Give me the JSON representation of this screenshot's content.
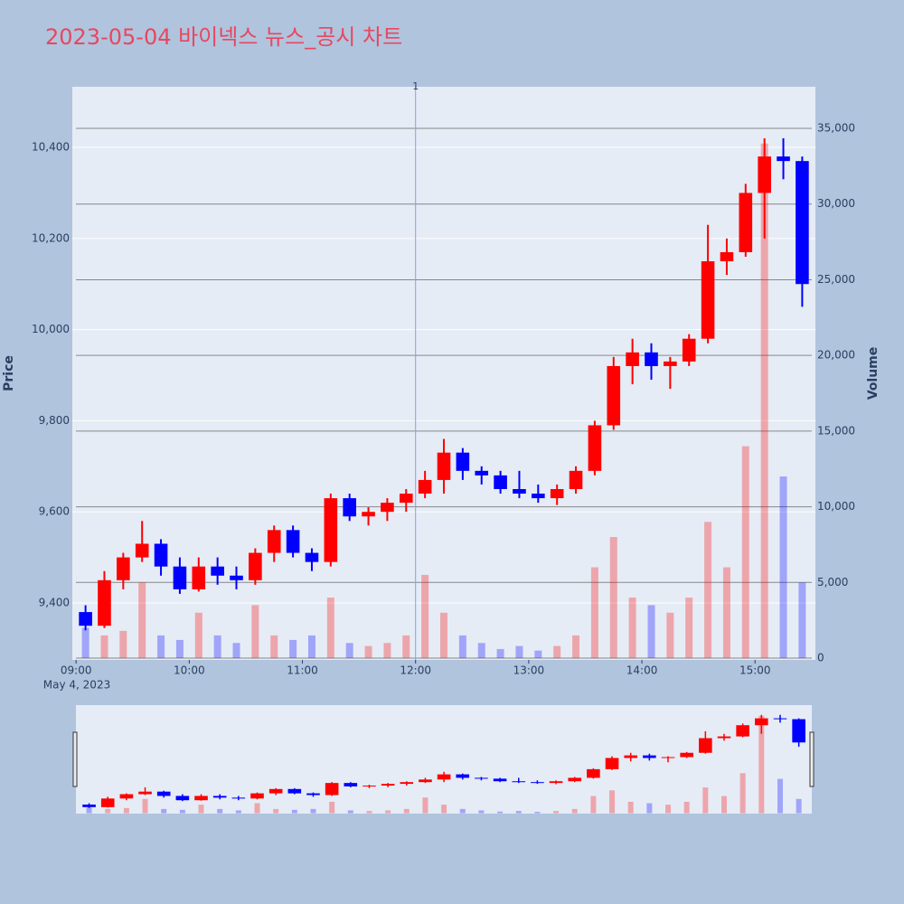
{
  "chart_data": {
    "type": "candlestick",
    "title": "2023-05-04 바이넥스 뉴스_공시 차트",
    "y_label": "Price",
    "y2_label": "Volume",
    "x_date_label": "May 4, 2023",
    "increasing_color": "#ff0000",
    "decreasing_color": "#0000ff",
    "x": [
      "2023-05-04 09:00",
      "2023-05-04 09:10",
      "2023-05-04 09:20",
      "2023-05-04 09:30",
      "2023-05-04 09:40",
      "2023-05-04 09:50",
      "2023-05-04 10:00",
      "2023-05-04 10:10",
      "2023-05-04 10:20",
      "2023-05-04 10:30",
      "2023-05-04 10:40",
      "2023-05-04 10:50",
      "2023-05-04 11:00",
      "2023-05-04 11:10",
      "2023-05-04 11:20",
      "2023-05-04 11:30",
      "2023-05-04 11:40",
      "2023-05-04 11:50",
      "2023-05-04 12:00",
      "2023-05-04 12:10",
      "2023-05-04 12:20",
      "2023-05-04 12:30",
      "2023-05-04 12:40",
      "2023-05-04 12:50",
      "2023-05-04 13:00",
      "2023-05-04 13:10",
      "2023-05-04 13:20",
      "2023-05-04 13:30",
      "2023-05-04 13:40",
      "2023-05-04 13:50",
      "2023-05-04 14:00",
      "2023-05-04 14:10",
      "2023-05-04 14:20",
      "2023-05-04 14:30",
      "2023-05-04 14:40",
      "2023-05-04 14:50",
      "2023-05-04 15:00",
      "2023-05-04 15:10",
      "2023-05-04 15:20"
    ],
    "open": [
      9380,
      9350,
      9450,
      9500,
      9530,
      9480,
      9430,
      9480,
      9460,
      9450,
      9510,
      9560,
      9510,
      9490,
      9630,
      9590,
      9600,
      9620,
      9640,
      9670,
      9730,
      9690,
      9680,
      9650,
      9640,
      9630,
      9650,
      9690,
      9790,
      9920,
      9950,
      9920,
      9930,
      9980,
      10150,
      10170,
      10300,
      10380,
      10370
    ],
    "high": [
      9395,
      9470,
      9510,
      9580,
      9540,
      9500,
      9500,
      9500,
      9480,
      9520,
      9570,
      9570,
      9520,
      9640,
      9640,
      9610,
      9630,
      9650,
      9690,
      9760,
      9740,
      9700,
      9690,
      9690,
      9660,
      9660,
      9700,
      9800,
      9940,
      9980,
      9970,
      9940,
      9990,
      10230,
      10200,
      10320,
      10420,
      10420,
      10380
    ],
    "low": [
      9340,
      9345,
      9430,
      9490,
      9460,
      9420,
      9425,
      9440,
      9430,
      9440,
      9490,
      9500,
      9470,
      9480,
      9580,
      9570,
      9580,
      9600,
      9630,
      9640,
      9670,
      9660,
      9640,
      9630,
      9620,
      9615,
      9640,
      9680,
      9780,
      9880,
      9890,
      9870,
      9920,
      9970,
      10120,
      10160,
      10200,
      10330,
      10050
    ],
    "close": [
      9350,
      9450,
      9500,
      9530,
      9480,
      9430,
      9480,
      9460,
      9450,
      9510,
      9560,
      9510,
      9490,
      9630,
      9590,
      9600,
      9620,
      9640,
      9670,
      9730,
      9690,
      9680,
      9650,
      9640,
      9630,
      9650,
      9690,
      9790,
      9920,
      9950,
      9920,
      9930,
      9980,
      10150,
      10170,
      10300,
      10380,
      10370,
      10100
    ],
    "volume": [
      2000,
      1500,
      1800,
      5000,
      1500,
      1200,
      3000,
      1500,
      1000,
      3500,
      1500,
      1200,
      1500,
      4000,
      1000,
      800,
      1000,
      1500,
      5500,
      3000,
      1500,
      1000,
      600,
      800,
      500,
      800,
      1500,
      6000,
      8000,
      4000,
      3500,
      3000,
      4000,
      9000,
      6000,
      14000,
      34000,
      12000,
      5000
    ],
    "xlim": [
      "2023-05-04 08:58",
      "2023-05-04 15:32"
    ],
    "xticks": [
      {
        "value": "2023-05-04 09:00",
        "label": "09:00"
      },
      {
        "value": "2023-05-04 10:00",
        "label": "10:00"
      },
      {
        "value": "2023-05-04 11:00",
        "label": "11:00"
      },
      {
        "value": "2023-05-04 12:00",
        "label": "12:00"
      },
      {
        "value": "2023-05-04 13:00",
        "label": "13:00"
      },
      {
        "value": "2023-05-04 14:00",
        "label": "14:00"
      },
      {
        "value": "2023-05-04 15:00",
        "label": "15:00"
      }
    ],
    "ylim": [
      9275,
      10533
    ],
    "yticks": [
      {
        "value": 9400,
        "label": "9,400"
      },
      {
        "value": 9600,
        "label": "9,600"
      },
      {
        "value": 9800,
        "label": "9,800"
      },
      {
        "value": 10000,
        "label": "10,000"
      },
      {
        "value": 10200,
        "label": "10,200"
      },
      {
        "value": 10400,
        "label": "10,400"
      }
    ],
    "y2lim": [
      -119,
      37750
    ],
    "y2ticks": [
      0,
      {
        "value": 5000,
        "label": "5,000"
      },
      {
        "value": 10000,
        "label": "10,000"
      },
      {
        "value": 15000,
        "label": "15,000"
      },
      {
        "value": 20000,
        "label": "20,000"
      },
      {
        "value": 25000,
        "label": "25,000"
      },
      {
        "value": 30000,
        "label": "30,000"
      },
      {
        "value": 35000,
        "label": "35,000"
      }
    ],
    "annotation": {
      "x": "2023-05-04 12:00",
      "text": "1"
    },
    "rangeslider": true
  }
}
